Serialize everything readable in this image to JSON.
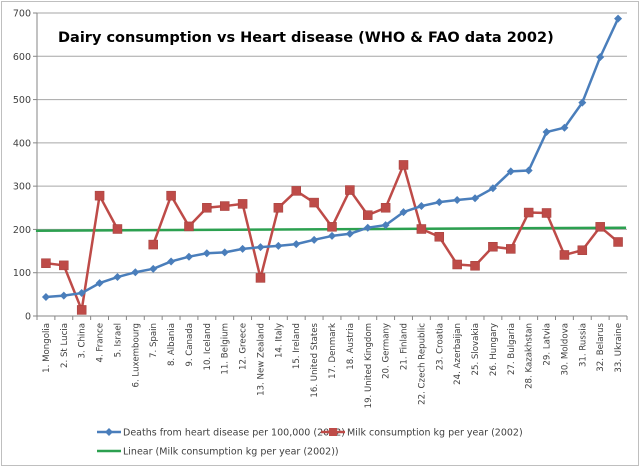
{
  "chart_data": {
    "type": "line",
    "title": "Dairy consumption  vs Heart disease (WHO & FAO data 2002)",
    "xlabel": "",
    "ylabel": "",
    "ylim": [
      0,
      700
    ],
    "yticks": [
      0,
      100,
      200,
      300,
      400,
      500,
      600,
      700
    ],
    "grid": true,
    "legend_position": "bottom",
    "categories": [
      "1. Mongolia",
      "2. St Lucia",
      "3. China",
      "4. France",
      "5. Israel",
      "6. Luxembourg",
      "7. Spain",
      "8. Albania",
      "9. Canada",
      "10. Iceland",
      "11. Belgium",
      "12. Greece",
      "13. New Zealand",
      "14. Italy",
      "15. Ireland",
      "16. United States",
      "17. Denmark",
      "18. Austria",
      "19. United Kingdom",
      "20. Germany",
      "21. Finland",
      "22. Czech Republic",
      "23. Croatia",
      "24. Azerbaijan",
      "25. Slovakia",
      "26. Hungary",
      "27. Bulgaria",
      "28. Kazakhstan",
      "29. Latvia",
      "30. Moldova",
      "31. Russia",
      "32. Belarus",
      "33. Ukraine"
    ],
    "series": [
      {
        "name": "Deaths from heart disease  per 100,000 (2002)",
        "color": "#4a7ebb",
        "marker": "diamond",
        "values": [
          44,
          47,
          53,
          76,
          90,
          101,
          109,
          126,
          137,
          145,
          147,
          155,
          159,
          162,
          166,
          176,
          185,
          190,
          204,
          210,
          240,
          254,
          263,
          268,
          272,
          295,
          334,
          336,
          425,
          435,
          493,
          598,
          687
        ]
      },
      {
        "name": "Milk consumption  kg per year (2002)",
        "color": "#be4b48",
        "marker": "square",
        "values": [
          122,
          117,
          14,
          278,
          201,
          null,
          165,
          278,
          207,
          250,
          254,
          259,
          88,
          250,
          289,
          262,
          206,
          291,
          233,
          250,
          349,
          201,
          183,
          119,
          116,
          160,
          155,
          239,
          238,
          141,
          152,
          206,
          171
        ]
      },
      {
        "name": "Linear (Milk consumption  kg per year (2002))",
        "color": "#2ca050",
        "marker": "none",
        "trendline": true,
        "start": 197,
        "end": 204
      }
    ]
  }
}
